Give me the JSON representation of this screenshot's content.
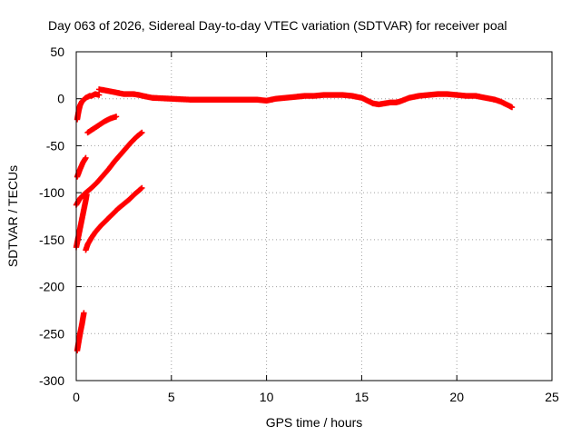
{
  "chart_data": {
    "type": "scatter",
    "title": "Day 063 of 2026, Sidereal Day-to-day VTEC variation (SDTVAR) for receiver poal",
    "xlabel": "GPS time / hours",
    "ylabel": "SDTVAR / TECUs",
    "xlim": [
      0,
      25
    ],
    "ylim": [
      -300,
      50
    ],
    "xticks": [
      0,
      5,
      10,
      15,
      20,
      25
    ],
    "yticks": [
      50,
      0,
      -50,
      -100,
      -150,
      -200,
      -250,
      -300
    ],
    "xtick_labels": [
      "0",
      "5",
      "10",
      "15",
      "20",
      "25"
    ],
    "ytick_labels": [
      "50",
      "0",
      "-50",
      "-100",
      "-150",
      "-200",
      "-250",
      "-300"
    ],
    "grid": true,
    "legend": "none",
    "marker": "plus",
    "color": "#ff0000",
    "series": [
      {
        "x": [
          0.05,
          0.1,
          0.15,
          0.2,
          0.3,
          0.4,
          0.5,
          0.6,
          0.7,
          0.8,
          1.0,
          1.2
        ],
        "y": [
          -22,
          -16,
          -11,
          -7,
          -3,
          -1,
          1,
          2,
          3,
          3,
          5,
          4
        ]
      },
      {
        "x": [
          1.2,
          1.5,
          2.0,
          2.5,
          3.0,
          3.3,
          3.5,
          4.0,
          5.0,
          6.0,
          7.0,
          8.0,
          9.0,
          9.5,
          10.0,
          10.5,
          11.0,
          11.5,
          12.0,
          12.5,
          13.0,
          13.5,
          14.0,
          14.5,
          15.0,
          15.3,
          15.6,
          15.9,
          16.2,
          16.5,
          16.8,
          17.0,
          17.5,
          18.0,
          18.5,
          19.0,
          19.5,
          20.0,
          20.5,
          21.0,
          21.5,
          22.0,
          22.3,
          22.6,
          22.9
        ],
        "y": [
          10,
          9,
          7,
          5,
          5,
          4,
          3,
          1,
          0,
          -1,
          -1,
          -1,
          -1,
          -1,
          -2,
          0,
          1,
          2,
          3,
          3,
          4,
          4,
          4,
          3,
          1,
          -2,
          -5,
          -6,
          -5,
          -4,
          -4,
          -3,
          1,
          3,
          4,
          5,
          5,
          4,
          3,
          3,
          1,
          -1,
          -3,
          -6,
          -9
        ]
      },
      {
        "x": [
          0.6,
          0.9,
          1.2,
          1.5,
          1.8,
          2.1
        ],
        "y": [
          -36,
          -32,
          -28,
          -24,
          -21,
          -19
        ]
      },
      {
        "x": [
          0.05,
          0.2,
          0.35,
          0.5
        ],
        "y": [
          -83,
          -75,
          -68,
          -63
        ]
      },
      {
        "x": [
          0.0,
          0.2,
          0.5,
          0.8,
          1.1,
          1.4,
          1.7,
          2.0,
          2.3,
          2.6,
          2.9,
          3.2,
          3.45
        ],
        "y": [
          -113,
          -106,
          -100,
          -95,
          -89,
          -82,
          -75,
          -67,
          -60,
          -53,
          -46,
          -40,
          -36
        ]
      },
      {
        "x": [
          0.0,
          0.1,
          0.2,
          0.3,
          0.4,
          0.5,
          0.55
        ],
        "y": [
          -158,
          -148,
          -138,
          -128,
          -118,
          -108,
          -102
        ]
      },
      {
        "x": [
          0.5,
          0.6,
          0.8,
          1.0,
          1.3,
          1.6,
          1.9,
          2.2,
          2.5,
          2.8,
          3.1,
          3.45
        ],
        "y": [
          -161,
          -155,
          -148,
          -142,
          -135,
          -129,
          -123,
          -117,
          -112,
          -107,
          -101,
          -95
        ]
      },
      {
        "x": [
          0.05,
          0.1,
          0.15,
          0.2,
          0.25,
          0.3,
          0.35,
          0.4
        ],
        "y": [
          -268,
          -262,
          -256,
          -250,
          -245,
          -240,
          -234,
          -228
        ]
      }
    ]
  }
}
